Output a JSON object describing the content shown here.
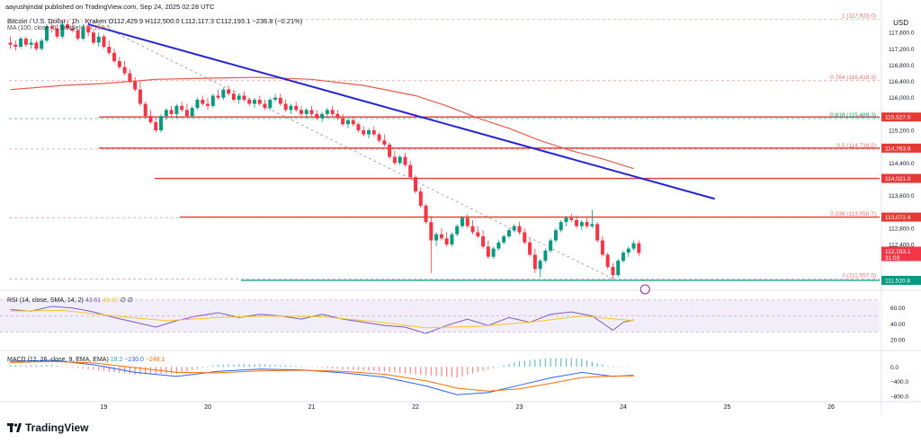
{
  "header": {
    "published_by": "aayushjindal published on TradingView.com, Sep 24, 2025 02:28 UTC"
  },
  "symbol": {
    "name": "Bitcoin / U.S. Dollar · 1h · Kraken",
    "ohlc": "O112,429.9 H112,500.0 L112,117.3 C112,193.1 −236.8 (−0.21%)"
  },
  "ma_label": {
    "name": "MA (100, close, 0, Simple)",
    "value": "114,259.5"
  },
  "rsi_label": {
    "name": "RSI (14, close, SMA, 14, 2)",
    "value1": "43.61",
    "value2": "46.87",
    "extra": "∅ ∅"
  },
  "macd_label": {
    "name": "MACD (12, 26, close, 9, EMA, EMA)",
    "v1": "18.2",
    "v2": "−230.0",
    "v3": "−248.1"
  },
  "currency": "USD",
  "logo_text": "TradingView",
  "chart_data": {
    "type": "candlestick",
    "price_axis": {
      "ticks": [
        "117,600.0",
        "117,200.0",
        "116,800.0",
        "116,400.0",
        "116,000.0",
        "115,200.0",
        "114,400.0",
        "113,600.0",
        "112,800.0",
        "112,400.0"
      ],
      "tick_values": [
        117600,
        117200,
        116800,
        116400,
        116000,
        115200,
        114400,
        113600,
        112800,
        112400
      ],
      "range": [
        111300,
        118000
      ]
    },
    "time_axis": {
      "ticks": [
        "19",
        "20",
        "21",
        "22",
        "23",
        "24",
        "25",
        "26"
      ]
    },
    "fib_levels": [
      {
        "label": "1 (117,920.0)",
        "price": 117920
      },
      {
        "label": "0.764 (116,418.3)",
        "price": 116418.3
      },
      {
        "label": "0.618 (115,489.3)",
        "price": 115489.3
      },
      {
        "label": "0.5 (114,738.5)",
        "price": 114738.5
      },
      {
        "label": "0.236 (113,058.7)",
        "price": 113058.7
      },
      {
        "label": "0 (111,557.0)",
        "price": 111557
      }
    ],
    "horizontal_levels": [
      {
        "label": "115,527.0",
        "price": 115527
      },
      {
        "label": "114,763.9",
        "price": 114763.9
      },
      {
        "label": "114,021.0",
        "price": 114021
      },
      {
        "label": "113,072.4",
        "price": 113072.4
      },
      {
        "label": "111,520.8",
        "price": 111520.8
      }
    ],
    "price_badges": [
      {
        "label": "112,193.1",
        "price": 112193.1
      },
      {
        "label": "31:03",
        "price": 112050
      }
    ],
    "trendline": {
      "from": {
        "day": 18.85,
        "price": 117800
      },
      "to": {
        "day": 24.88,
        "price": 113520
      }
    },
    "candles": [
      [
        18.1,
        117350,
        117500,
        117200,
        117300
      ],
      [
        18.15,
        117300,
        117400,
        117150,
        117250
      ],
      [
        18.2,
        117250,
        117500,
        117200,
        117450
      ],
      [
        18.25,
        117450,
        117500,
        117250,
        117300
      ],
      [
        18.3,
        117300,
        117450,
        117200,
        117350
      ],
      [
        18.35,
        117350,
        117400,
        117150,
        117200
      ],
      [
        18.4,
        117200,
        117450,
        117150,
        117400
      ],
      [
        18.45,
        117400,
        117800,
        117350,
        117750
      ],
      [
        18.5,
        117750,
        117900,
        117600,
        117700
      ],
      [
        18.55,
        117700,
        117800,
        117450,
        117500
      ],
      [
        18.6,
        117500,
        117850,
        117450,
        117800
      ],
      [
        18.65,
        117800,
        117920,
        117650,
        117700
      ],
      [
        18.7,
        117700,
        117850,
        117600,
        117650
      ],
      [
        18.75,
        117650,
        117700,
        117400,
        117450
      ],
      [
        18.8,
        117450,
        117800,
        117400,
        117750
      ],
      [
        18.85,
        117750,
        117850,
        117500,
        117600
      ],
      [
        18.9,
        117600,
        117650,
        117300,
        117350
      ],
      [
        18.95,
        117350,
        117600,
        117250,
        117500
      ],
      [
        19.0,
        117500,
        117550,
        117200,
        117250
      ],
      [
        19.05,
        117250,
        117400,
        117050,
        117100
      ],
      [
        19.1,
        117100,
        117200,
        116850,
        116900
      ],
      [
        19.15,
        116900,
        117000,
        116700,
        116750
      ],
      [
        19.2,
        116750,
        116900,
        116550,
        116600
      ],
      [
        19.25,
        116600,
        116700,
        116350,
        116400
      ],
      [
        19.3,
        116400,
        116500,
        116150,
        116200
      ],
      [
        19.35,
        116200,
        116400,
        115800,
        115850
      ],
      [
        19.4,
        115850,
        115900,
        115500,
        115550
      ],
      [
        19.45,
        115550,
        115700,
        115350,
        115400
      ],
      [
        19.5,
        115400,
        115500,
        115150,
        115200
      ],
      [
        19.55,
        115200,
        115600,
        115150,
        115550
      ],
      [
        19.6,
        115550,
        115750,
        115450,
        115700
      ],
      [
        19.65,
        115700,
        115800,
        115550,
        115600
      ],
      [
        19.7,
        115600,
        115850,
        115500,
        115800
      ],
      [
        19.75,
        115800,
        115900,
        115650,
        115700
      ],
      [
        19.8,
        115700,
        115850,
        115500,
        115550
      ],
      [
        19.85,
        115550,
        115800,
        115500,
        115750
      ],
      [
        19.9,
        115750,
        116000,
        115700,
        115950
      ],
      [
        19.95,
        115950,
        116050,
        115800,
        115850
      ],
      [
        20.0,
        115850,
        116000,
        115700,
        115800
      ],
      [
        20.05,
        115800,
        116100,
        115750,
        116050
      ],
      [
        20.1,
        116050,
        116200,
        115950,
        116000
      ],
      [
        20.15,
        116000,
        116250,
        115950,
        116200
      ],
      [
        20.2,
        116200,
        116300,
        116050,
        116100
      ],
      [
        20.25,
        116100,
        116200,
        115900,
        115950
      ],
      [
        20.3,
        115950,
        116100,
        115850,
        116050
      ],
      [
        20.35,
        116050,
        116150,
        115900,
        115950
      ],
      [
        20.4,
        115950,
        116000,
        115800,
        115850
      ],
      [
        20.45,
        115850,
        116000,
        115750,
        115950
      ],
      [
        20.5,
        115950,
        116050,
        115800,
        115850
      ],
      [
        20.55,
        115850,
        115950,
        115700,
        115750
      ],
      [
        20.6,
        115750,
        116000,
        115700,
        115950
      ],
      [
        20.65,
        115950,
        116100,
        115900,
        116000
      ],
      [
        20.7,
        116000,
        116100,
        115800,
        115850
      ],
      [
        20.75,
        115850,
        115950,
        115650,
        115700
      ],
      [
        20.8,
        115700,
        115850,
        115600,
        115800
      ],
      [
        20.85,
        115800,
        115900,
        115650,
        115700
      ],
      [
        20.9,
        115700,
        115800,
        115550,
        115600
      ],
      [
        20.95,
        115600,
        115750,
        115500,
        115700
      ],
      [
        21.0,
        115700,
        115800,
        115550,
        115600
      ],
      [
        21.05,
        115600,
        115700,
        115450,
        115500
      ],
      [
        21.1,
        115500,
        115650,
        115400,
        115600
      ],
      [
        21.15,
        115600,
        115750,
        115500,
        115700
      ],
      [
        21.2,
        115700,
        115800,
        115550,
        115600
      ],
      [
        21.25,
        115600,
        115700,
        115450,
        115500
      ],
      [
        21.3,
        115500,
        115600,
        115300,
        115350
      ],
      [
        21.35,
        115350,
        115500,
        115250,
        115450
      ],
      [
        21.4,
        115450,
        115550,
        115300,
        115350
      ],
      [
        21.45,
        115350,
        115400,
        115150,
        115200
      ],
      [
        21.5,
        115200,
        115300,
        115050,
        115100
      ],
      [
        21.55,
        115100,
        115250,
        115000,
        115200
      ],
      [
        21.6,
        115200,
        115300,
        115050,
        115100
      ],
      [
        21.65,
        115100,
        115150,
        114900,
        114950
      ],
      [
        21.7,
        114950,
        115100,
        114800,
        114850
      ],
      [
        21.75,
        114850,
        114900,
        114500,
        114550
      ],
      [
        21.8,
        114550,
        114700,
        114350,
        114400
      ],
      [
        21.85,
        114400,
        114600,
        114350,
        114550
      ],
      [
        21.9,
        114550,
        114650,
        114300,
        114350
      ],
      [
        21.95,
        114350,
        114450,
        114000,
        114050
      ],
      [
        22.0,
        114050,
        114100,
        113650,
        113700
      ],
      [
        22.05,
        113700,
        113800,
        113300,
        113350
      ],
      [
        22.1,
        113350,
        113400,
        112900,
        112950
      ],
      [
        22.15,
        112950,
        113100,
        111700,
        112500
      ],
      [
        22.2,
        112500,
        112700,
        112350,
        112650
      ],
      [
        22.25,
        112650,
        112800,
        112500,
        112550
      ],
      [
        22.3,
        112550,
        112700,
        112350,
        112400
      ],
      [
        22.35,
        112400,
        112700,
        112350,
        112650
      ],
      [
        22.4,
        112650,
        112900,
        112600,
        112850
      ],
      [
        22.45,
        112850,
        113100,
        112800,
        113050
      ],
      [
        22.5,
        113050,
        113150,
        112800,
        112850
      ],
      [
        22.55,
        112850,
        113000,
        112650,
        112700
      ],
      [
        22.6,
        112700,
        112850,
        112550,
        112600
      ],
      [
        22.65,
        112600,
        112750,
        112300,
        112350
      ],
      [
        22.7,
        112350,
        112500,
        112050,
        112100
      ],
      [
        22.75,
        112100,
        112350,
        112050,
        112300
      ],
      [
        22.8,
        112300,
        112500,
        112250,
        112450
      ],
      [
        22.85,
        112450,
        112650,
        112400,
        112600
      ],
      [
        22.9,
        112600,
        112800,
        112550,
        112750
      ],
      [
        22.95,
        112750,
        112900,
        112700,
        112850
      ],
      [
        23.0,
        112850,
        112950,
        112650,
        112700
      ],
      [
        23.05,
        112700,
        112800,
        112400,
        112450
      ],
      [
        23.1,
        112450,
        112550,
        112100,
        112150
      ],
      [
        23.15,
        112150,
        112300,
        111700,
        111800
      ],
      [
        23.2,
        111800,
        112050,
        111600,
        112000
      ],
      [
        23.25,
        112000,
        112300,
        111950,
        112250
      ],
      [
        23.3,
        112250,
        112550,
        112200,
        112500
      ],
      [
        23.35,
        112500,
        112800,
        112450,
        112750
      ],
      [
        23.4,
        112750,
        113000,
        112700,
        112950
      ],
      [
        23.45,
        112950,
        113100,
        112850,
        113050
      ],
      [
        23.5,
        113050,
        113150,
        112950,
        113000
      ],
      [
        23.55,
        113000,
        113100,
        112800,
        112850
      ],
      [
        23.6,
        112850,
        113000,
        112750,
        112950
      ],
      [
        23.65,
        112950,
        113050,
        112800,
        112850
      ],
      [
        23.7,
        112850,
        113250,
        112800,
        112900
      ],
      [
        23.75,
        112900,
        112950,
        112450,
        112500
      ],
      [
        23.8,
        112500,
        112600,
        112100,
        112150
      ],
      [
        23.85,
        112150,
        112200,
        111800,
        111850
      ],
      [
        23.9,
        111850,
        111950,
        111557,
        111650
      ],
      [
        23.95,
        111650,
        112050,
        111600,
        112000
      ],
      [
        24.0,
        112000,
        112250,
        111950,
        112200
      ],
      [
        24.05,
        112200,
        112350,
        112100,
        112300
      ],
      [
        24.1,
        112300,
        112500,
        112250,
        112429.9
      ],
      [
        24.15,
        112429.9,
        112500,
        112117.3,
        112193.1
      ]
    ],
    "ma100": [
      [
        18.1,
        116200
      ],
      [
        18.6,
        116300
      ],
      [
        19.0,
        116350
      ],
      [
        19.5,
        116450
      ],
      [
        20.0,
        116480
      ],
      [
        20.5,
        116500
      ],
      [
        21.0,
        116450
      ],
      [
        21.5,
        116300
      ],
      [
        22.0,
        116050
      ],
      [
        22.3,
        115800
      ],
      [
        22.6,
        115500
      ],
      [
        22.9,
        115250
      ],
      [
        23.2,
        114950
      ],
      [
        23.5,
        114700
      ],
      [
        23.8,
        114500
      ],
      [
        24.1,
        114259.5
      ]
    ],
    "rsi": {
      "label": "RSI (14, close, SMA, 14, 2)",
      "ticks": [
        "60.00",
        "40.00",
        "20.00"
      ],
      "tick_values": [
        60,
        40,
        20
      ],
      "band": [
        30,
        70
      ],
      "values": [
        [
          18.1,
          58
        ],
        [
          18.3,
          56
        ],
        [
          18.5,
          62
        ],
        [
          18.7,
          60
        ],
        [
          18.9,
          55
        ],
        [
          19.1,
          48
        ],
        [
          19.3,
          42
        ],
        [
          19.5,
          36
        ],
        [
          19.7,
          44
        ],
        [
          19.9,
          50
        ],
        [
          20.1,
          54
        ],
        [
          20.3,
          48
        ],
        [
          20.5,
          52
        ],
        [
          20.7,
          50
        ],
        [
          20.9,
          46
        ],
        [
          21.1,
          52
        ],
        [
          21.3,
          46
        ],
        [
          21.5,
          42
        ],
        [
          21.7,
          38
        ],
        [
          21.9,
          36
        ],
        [
          22.1,
          28
        ],
        [
          22.3,
          38
        ],
        [
          22.5,
          46
        ],
        [
          22.7,
          38
        ],
        [
          22.9,
          48
        ],
        [
          23.1,
          42
        ],
        [
          23.3,
          52
        ],
        [
          23.5,
          55
        ],
        [
          23.7,
          50
        ],
        [
          23.9,
          32
        ],
        [
          24.0,
          42
        ],
        [
          24.1,
          45
        ]
      ],
      "ma": [
        [
          18.1,
          56
        ],
        [
          18.6,
          57
        ],
        [
          19.1,
          50
        ],
        [
          19.6,
          44
        ],
        [
          20.1,
          48
        ],
        [
          20.6,
          50
        ],
        [
          21.1,
          49
        ],
        [
          21.6,
          43
        ],
        [
          22.1,
          35
        ],
        [
          22.6,
          37
        ],
        [
          23.1,
          42
        ],
        [
          23.6,
          50
        ],
        [
          24.1,
          44
        ]
      ]
    },
    "macd": {
      "label": "MACD (12, 26, close, 9, EMA, EMA)",
      "ticks": [
        "0.0",
        "−400.0",
        "−800.0"
      ],
      "tick_values": [
        0,
        -400,
        -800
      ],
      "range": [
        -900,
        400
      ],
      "macd_line": [
        [
          18.1,
          150
        ],
        [
          18.5,
          180
        ],
        [
          18.9,
          60
        ],
        [
          19.3,
          -150
        ],
        [
          19.7,
          -260
        ],
        [
          20.1,
          -120
        ],
        [
          20.5,
          -60
        ],
        [
          20.9,
          -80
        ],
        [
          21.3,
          -160
        ],
        [
          21.7,
          -280
        ],
        [
          22.1,
          -520
        ],
        [
          22.4,
          -760
        ],
        [
          22.7,
          -700
        ],
        [
          23.0,
          -500
        ],
        [
          23.3,
          -300
        ],
        [
          23.6,
          -150
        ],
        [
          23.9,
          -260
        ],
        [
          24.1,
          -230
        ]
      ],
      "signal_line": [
        [
          18.1,
          120
        ],
        [
          18.5,
          150
        ],
        [
          18.9,
          110
        ],
        [
          19.3,
          -20
        ],
        [
          19.7,
          -150
        ],
        [
          20.1,
          -160
        ],
        [
          20.5,
          -110
        ],
        [
          20.9,
          -90
        ],
        [
          21.3,
          -120
        ],
        [
          21.7,
          -200
        ],
        [
          22.1,
          -380
        ],
        [
          22.4,
          -580
        ],
        [
          22.7,
          -660
        ],
        [
          23.0,
          -600
        ],
        [
          23.3,
          -450
        ],
        [
          23.6,
          -290
        ],
        [
          23.9,
          -250
        ],
        [
          24.1,
          -248.1
        ]
      ]
    }
  }
}
